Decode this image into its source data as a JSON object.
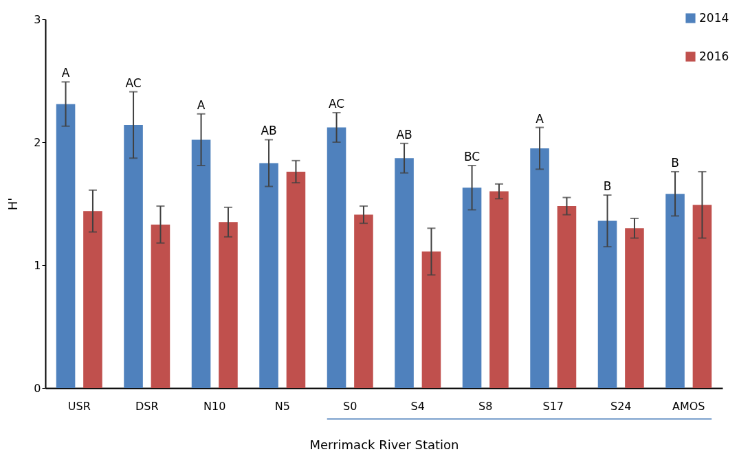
{
  "chart_data": {
    "type": "bar",
    "xlabel": "Merrimack River Station",
    "ylabel": "H'",
    "categories": [
      "USR",
      "DSR",
      "N10",
      "N5",
      "S0",
      "S4",
      "S8",
      "S17",
      "S24",
      "AMOS"
    ],
    "series": [
      {
        "name": "2014",
        "color": "#4f81bd",
        "values": [
          2.31,
          2.14,
          2.02,
          1.83,
          2.12,
          1.87,
          1.63,
          1.95,
          1.36,
          1.58
        ],
        "errors": [
          0.18,
          0.27,
          0.21,
          0.19,
          0.12,
          0.12,
          0.18,
          0.17,
          0.21,
          0.18
        ]
      },
      {
        "name": "2016",
        "color": "#c0504d",
        "values": [
          1.44,
          1.33,
          1.35,
          1.76,
          1.41,
          1.11,
          1.6,
          1.48,
          1.3,
          1.49
        ],
        "errors": [
          0.17,
          0.15,
          0.12,
          0.09,
          0.07,
          0.19,
          0.06,
          0.07,
          0.08,
          0.27
        ]
      }
    ],
    "annotations": [
      "A",
      "AC",
      "A",
      "AB",
      "AC",
      "AB",
      "BC",
      "A",
      "B",
      "B"
    ],
    "ylim": [
      0,
      3
    ],
    "yticks": [
      0,
      1,
      2,
      3
    ],
    "grid": false,
    "legend": "top right"
  }
}
